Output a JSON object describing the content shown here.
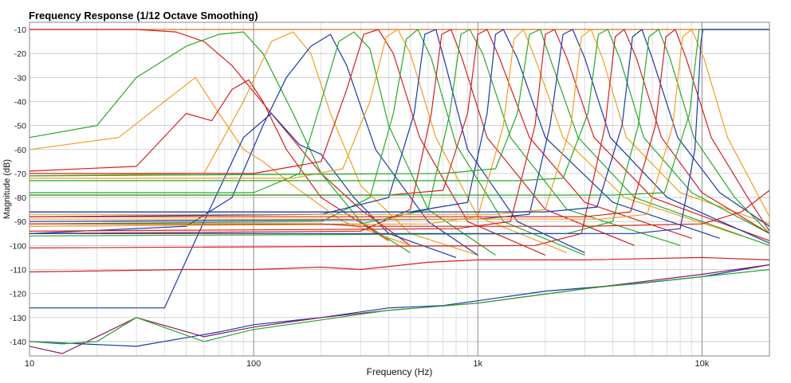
{
  "chart_data": {
    "type": "line",
    "title": "Frequency Response (1/12 Octave Smoothing)",
    "xlabel": "Frequency (Hz)",
    "ylabel": "Magnitude (dB)",
    "x_scale": "log",
    "xlim": [
      10,
      20000
    ],
    "ylim": [
      -146,
      -7
    ],
    "grid": true,
    "x_ticks": [
      {
        "value": 10,
        "label": "10"
      },
      {
        "value": 100,
        "label": "100"
      },
      {
        "value": 1000,
        "label": "1k"
      },
      {
        "value": 10000,
        "label": "10k"
      }
    ],
    "y_ticks": [
      {
        "value": -10,
        "label": "-10"
      },
      {
        "value": -20,
        "label": "-20"
      },
      {
        "value": -30,
        "label": "-30"
      },
      {
        "value": -40,
        "label": "-40"
      },
      {
        "value": -50,
        "label": "-50"
      },
      {
        "value": -60,
        "label": "-60"
      },
      {
        "value": -70,
        "label": "-70"
      },
      {
        "value": -80,
        "label": "-80"
      },
      {
        "value": -90,
        "label": "-90"
      },
      {
        "value": -100,
        "label": "-100"
      },
      {
        "value": -110,
        "label": "-110"
      },
      {
        "value": -120,
        "label": "-120"
      },
      {
        "value": -130,
        "label": "-130"
      },
      {
        "value": -140,
        "label": "-140"
      }
    ],
    "series": [
      {
        "color": "#e07020",
        "x": [
          10,
          60,
          100,
          300,
          1000,
          5000,
          20000
        ],
        "y": [
          -10,
          -10,
          -10,
          -10,
          -10,
          -10,
          -10
        ]
      },
      {
        "color": "#d42020",
        "x": [
          10,
          30,
          45,
          60,
          80,
          120,
          200,
          300,
          500
        ],
        "y": [
          -10,
          -10,
          -11,
          -15,
          -25,
          -45,
          -70,
          -85,
          -100
        ]
      },
      {
        "color": "#2aa82a",
        "x": [
          10,
          20,
          30,
          50,
          70,
          90,
          110,
          150,
          200,
          300,
          500
        ],
        "y": [
          -55,
          -50,
          -30,
          -17,
          -12,
          -11,
          -20,
          -45,
          -70,
          -90,
          -103
        ]
      },
      {
        "color": "#f0a020",
        "x": [
          10,
          25,
          40,
          55,
          70,
          90,
          110,
          150,
          250,
          500
        ],
        "y": [
          -60,
          -55,
          -40,
          -30,
          -45,
          -60,
          -65,
          -75,
          -90,
          -100
        ]
      },
      {
        "color": "#d42020",
        "x": [
          10,
          30,
          50,
          65,
          80,
          95,
          110,
          140,
          200,
          400
        ],
        "y": [
          -69,
          -67,
          -45,
          -48,
          -35,
          -31,
          -40,
          -60,
          -80,
          -98
        ]
      },
      {
        "color": "#f0a020",
        "x": [
          10,
          60,
          90,
          120,
          150,
          180,
          220,
          300,
          500,
          1000
        ],
        "y": [
          -71,
          -70,
          -40,
          -15,
          -11,
          -20,
          -45,
          -75,
          -95,
          -104
        ]
      },
      {
        "color": "#1a3aa8",
        "x": [
          10,
          50,
          80,
          110,
          140,
          180,
          220,
          260,
          350,
          600,
          1000
        ],
        "y": [
          -95,
          -92,
          -80,
          -50,
          -30,
          -17,
          -12,
          -25,
          -60,
          -90,
          -104
        ]
      },
      {
        "color": "#1a3aa8",
        "x": [
          10,
          40,
          60,
          90,
          120,
          160,
          200,
          280,
          400,
          800
        ],
        "y": [
          -126,
          -126,
          -90,
          -55,
          -45,
          -58,
          -62,
          -80,
          -95,
          -105
        ]
      },
      {
        "color": "#2aa82a",
        "x": [
          10,
          100,
          160,
          200,
          240,
          280,
          330,
          400,
          600,
          1200
        ],
        "y": [
          -78,
          -78,
          -70,
          -40,
          -15,
          -11,
          -18,
          -50,
          -85,
          -104
        ]
      },
      {
        "color": "#d42020",
        "x": [
          10,
          100,
          200,
          260,
          310,
          360,
          420,
          550,
          900,
          2000
        ],
        "y": [
          -70,
          -70,
          -65,
          -35,
          -12,
          -10,
          -20,
          -55,
          -90,
          -104
        ]
      },
      {
        "color": "#f0a020",
        "x": [
          10,
          150,
          250,
          330,
          390,
          440,
          500,
          650,
          1000,
          2500
        ],
        "y": [
          -72,
          -72,
          -68,
          -40,
          -13,
          -10,
          -20,
          -55,
          -88,
          -103
        ]
      },
      {
        "color": "#2aa82a",
        "x": [
          10,
          200,
          330,
          420,
          480,
          540,
          620,
          800,
          1300,
          3000
        ],
        "y": [
          -91,
          -90,
          -80,
          -45,
          -14,
          -10,
          -22,
          -58,
          -90,
          -104
        ]
      },
      {
        "color": "#1a3aa8",
        "x": [
          10,
          200,
          400,
          520,
          580,
          650,
          720,
          900,
          1500,
          3000
        ],
        "y": [
          -88,
          -87,
          -80,
          -45,
          -12,
          -10,
          -25,
          -60,
          -90,
          -103
        ]
      },
      {
        "color": "#d42020",
        "x": [
          10,
          300,
          500,
          620,
          690,
          760,
          850,
          1100,
          2000,
          5000
        ],
        "y": [
          -95,
          -94,
          -85,
          -45,
          -12,
          -10,
          -22,
          -55,
          -85,
          -100
        ]
      },
      {
        "color": "#2aa82a",
        "x": [
          10,
          300,
          600,
          750,
          840,
          920,
          1050,
          1400,
          2500,
          8000
        ],
        "y": [
          -92,
          -91,
          -85,
          -45,
          -12,
          -10,
          -20,
          -55,
          -85,
          -100
        ]
      },
      {
        "color": "#d42020",
        "x": [
          10,
          400,
          700,
          900,
          1000,
          1100,
          1250,
          1700,
          3000,
          9000
        ],
        "y": [
          -79,
          -79,
          -77,
          -45,
          -12,
          -10,
          -22,
          -55,
          -82,
          -97
        ]
      },
      {
        "color": "#1a3aa8",
        "x": [
          10,
          500,
          900,
          1100,
          1200,
          1300,
          1500,
          2000,
          4000,
          12000
        ],
        "y": [
          -86,
          -86,
          -82,
          -45,
          -12,
          -10,
          -22,
          -55,
          -82,
          -97
        ]
      },
      {
        "color": "#f0a020",
        "x": [
          10,
          600,
          1000,
          1300,
          1450,
          1600,
          1800,
          2400,
          4500,
          15000
        ],
        "y": [
          -92,
          -91,
          -88,
          -50,
          -14,
          -10,
          -22,
          -55,
          -80,
          -96
        ]
      },
      {
        "color": "#2aa82a",
        "x": [
          10,
          700,
          1200,
          1500,
          1700,
          1900,
          2100,
          2800,
          5000,
          20000
        ],
        "y": [
          -71,
          -70,
          -68,
          -45,
          -12,
          -10,
          -22,
          -55,
          -80,
          -100
        ]
      },
      {
        "color": "#d42020",
        "x": [
          10,
          800,
          1400,
          1800,
          2000,
          2200,
          2500,
          3300,
          6000,
          20000
        ],
        "y": [
          -94,
          -93,
          -90,
          -50,
          -12,
          -10,
          -22,
          -55,
          -80,
          -98
        ]
      },
      {
        "color": "#1a3aa8",
        "x": [
          10,
          1000,
          1700,
          2100,
          2400,
          2650,
          3000,
          3900,
          7000,
          20000
        ],
        "y": [
          -90,
          -89,
          -87,
          -50,
          -12,
          -10,
          -22,
          -55,
          -80,
          -99
        ]
      },
      {
        "color": "#f0a020",
        "x": [
          10,
          1200,
          2000,
          2600,
          2900,
          3200,
          3600,
          4600,
          8000,
          20000
        ],
        "y": [
          -87,
          -87,
          -85,
          -50,
          -13,
          -10,
          -22,
          -55,
          -78,
          -91
        ]
      },
      {
        "color": "#2aa82a",
        "x": [
          10,
          1500,
          2400,
          3100,
          3450,
          3800,
          4300,
          5500,
          9000,
          20000
        ],
        "y": [
          -73,
          -73,
          -72,
          -45,
          -12,
          -10,
          -22,
          -55,
          -78,
          -95
        ]
      },
      {
        "color": "#d42020",
        "x": [
          10,
          1800,
          2900,
          3700,
          4100,
          4500,
          5100,
          6600,
          10000,
          20000
        ],
        "y": [
          -101,
          -100,
          -95,
          -50,
          -13,
          -10,
          -22,
          -55,
          -78,
          -95
        ]
      },
      {
        "color": "#1a3aa8",
        "x": [
          10,
          2000,
          3400,
          4400,
          4900,
          5400,
          6000,
          7800,
          12000,
          20000
        ],
        "y": [
          -86,
          -86,
          -84,
          -50,
          -13,
          -10,
          -22,
          -55,
          -78,
          -92
        ]
      },
      {
        "color": "#2aa82a",
        "x": [
          10,
          2500,
          4000,
          5200,
          5800,
          6400,
          7200,
          9200,
          14000,
          20000
        ],
        "y": [
          -96,
          -95,
          -90,
          -50,
          -13,
          -10,
          -22,
          -55,
          -80,
          -95
        ]
      },
      {
        "color": "#d42020",
        "x": [
          10,
          3000,
          4800,
          6200,
          6900,
          7600,
          8500,
          11000,
          16000,
          20000
        ],
        "y": [
          -88,
          -88,
          -86,
          -50,
          -13,
          -10,
          -22,
          -55,
          -80,
          -94
        ]
      },
      {
        "color": "#f0a020",
        "x": [
          10,
          3500,
          5700,
          7400,
          8200,
          9000,
          10200,
          13000,
          20000
        ],
        "y": [
          -89,
          -89,
          -87,
          -50,
          -13,
          -10,
          -22,
          -55,
          -88
        ]
      },
      {
        "color": "#2aa82a",
        "x": [
          10,
          4000,
          6800,
          8800,
          9700,
          10500,
          20000
        ],
        "y": [
          -79,
          -79,
          -78,
          -45,
          -10,
          -10,
          -10
        ]
      },
      {
        "color": "#1a3aa8",
        "x": [
          10,
          5000,
          8000,
          9300,
          9900,
          10100,
          20000
        ],
        "y": [
          -95,
          -95,
          -93,
          -60,
          -15,
          -10,
          -10
        ]
      },
      {
        "color": "#d42020",
        "x": [
          10,
          50,
          100,
          200,
          300,
          600,
          1000,
          3000,
          10000,
          15000,
          20000
        ],
        "y": [
          -91,
          -91,
          -91,
          -91,
          -92,
          -92,
          -92,
          -92,
          -91,
          -86,
          -77
        ]
      },
      {
        "color": "#d42020",
        "x": [
          10,
          50,
          100,
          200,
          300,
          600,
          1000,
          3000,
          10000,
          20000
        ],
        "y": [
          -111,
          -110,
          -110,
          -109,
          -110,
          -107,
          -106,
          -106,
          -105,
          -106
        ]
      },
      {
        "color": "#1a3aa8",
        "x": [
          10,
          30,
          70,
          100,
          200,
          400,
          700,
          1000,
          2000,
          5000,
          10000,
          20000
        ],
        "y": [
          -140,
          -142,
          -136,
          -133,
          -130,
          -126,
          -125,
          -123,
          -119,
          -116,
          -113,
          -108
        ]
      },
      {
        "color": "#8a1a6a",
        "x": [
          10,
          14,
          20,
          30,
          60,
          100,
          200,
          400,
          1000,
          3000,
          10000,
          20000
        ],
        "y": [
          -142,
          -145,
          -138,
          -130,
          -138,
          -134,
          -130,
          -127,
          -124,
          -118,
          -112,
          -108
        ]
      },
      {
        "color": "#2aa82a",
        "x": [
          10,
          14,
          20,
          30,
          60,
          100,
          200,
          400,
          1000,
          3000,
          10000,
          20000
        ],
        "y": [
          -140,
          -141,
          -140,
          -130,
          -140,
          -135,
          -131,
          -127,
          -124,
          -118,
          -113,
          -110
        ]
      }
    ]
  }
}
